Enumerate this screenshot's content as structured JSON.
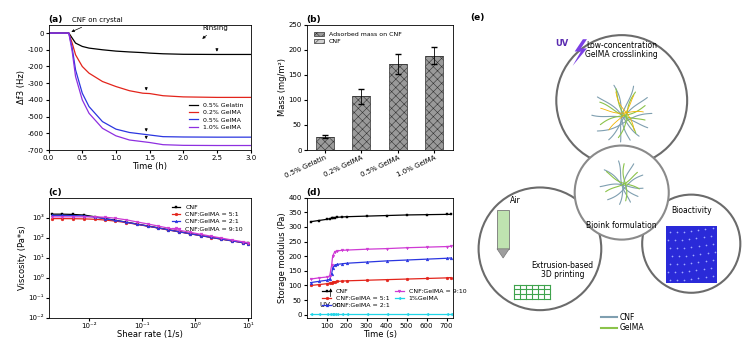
{
  "chart_data": [
    {
      "type": "line",
      "title": "(a)",
      "x_label": "Time (h)",
      "y_label": "Δf3 (Hz)",
      "x": [
        0,
        0.1,
        0.2,
        0.3,
        0.35,
        0.4,
        0.5,
        0.6,
        0.8,
        1.0,
        1.2,
        1.4,
        1.5,
        1.7,
        2.0,
        2.5,
        3.0
      ],
      "series": [
        {
          "name": "0.5% Gelatin",
          "color": "#000000",
          "marker": "none",
          "values": [
            0,
            0,
            0,
            0,
            -30,
            -60,
            -80,
            -90,
            -100,
            -108,
            -113,
            -117,
            -120,
            -124,
            -127,
            -128,
            -128
          ]
        },
        {
          "name": "0.2% GelMA",
          "color": "#e3241b",
          "marker": "none",
          "values": [
            0,
            0,
            0,
            0,
            -60,
            -130,
            -200,
            -240,
            -290,
            -320,
            -345,
            -360,
            -362,
            -375,
            -382,
            -385,
            -385
          ]
        },
        {
          "name": "0.5% GelMA",
          "color": "#2b36e0",
          "marker": "none",
          "values": [
            0,
            0,
            0,
            0,
            -90,
            -220,
            -360,
            -440,
            -530,
            -575,
            -595,
            -605,
            -610,
            -620,
            -622,
            -623,
            -623
          ]
        },
        {
          "name": "1.0% GelMA",
          "color": "#8e2fe0",
          "marker": "none",
          "values": [
            0,
            0,
            0,
            0,
            -110,
            -260,
            -400,
            -480,
            -570,
            -615,
            -640,
            -650,
            -655,
            -668,
            -672,
            -673,
            -673
          ]
        }
      ],
      "xlim": [
        0,
        3
      ],
      "xticks": [
        {
          "value": 0,
          "label": "0.0"
        },
        0.5,
        {
          "value": 1,
          "label": "1.0"
        },
        1.5,
        {
          "value": 2,
          "label": "2.0"
        },
        2.5,
        {
          "value": 3,
          "label": "3.0"
        }
      ],
      "ylim": [
        -700,
        50
      ],
      "yticks": [
        -700,
        -600,
        -500,
        -400,
        -300,
        -200,
        -100,
        0
      ],
      "legend": "center right",
      "annotations": [
        {
          "text": "CNF on crystal",
          "x": 0.3,
          "y": 0
        },
        {
          "text": "Rinsing",
          "x": 2.25,
          "y": -45
        }
      ],
      "rinsing_arrows": {
        "x": [
          2.5,
          1.45,
          1.45,
          1.45
        ],
        "y": [
          -128,
          -361,
          -607,
          -652
        ]
      }
    },
    {
      "type": "bar",
      "title": "(b)",
      "y_label": "Mass (mg/m²)",
      "categories": [
        "0.5% Gelatin",
        "0.2% GelMA",
        "0.5% GelMA",
        "1.0% GelMA"
      ],
      "series": [
        {
          "name": "Adsorbed mass on CNF",
          "color": "#9a9a9a",
          "values": [
            26,
            107,
            171,
            188
          ],
          "errors": [
            3,
            15,
            20,
            17
          ]
        },
        {
          "name": "CNF",
          "color": "#d0d0d0",
          "values": [
            0,
            0,
            0,
            0
          ]
        }
      ],
      "stacked": true,
      "ylim": [
        0,
        250
      ],
      "yticks": [
        0,
        50,
        100,
        150,
        200,
        250
      ],
      "legend": "upper left"
    },
    {
      "type": "line",
      "title": "(c)",
      "x_label": "Shear rate (1/s)",
      "y_label": "Viscosity (Pa*s)",
      "log": true,
      "x": [
        0.002,
        0.003,
        0.005,
        0.008,
        0.013,
        0.02,
        0.03,
        0.05,
        0.08,
        0.13,
        0.2,
        0.3,
        0.5,
        0.8,
        1.3,
        2,
        3,
        5,
        8,
        10
      ],
      "series": [
        {
          "name": "CNF",
          "color": "#000000",
          "marker": "square",
          "values": [
            1500,
            1500,
            1450,
            1350,
            1100,
            900,
            750,
            600,
            480,
            380,
            310,
            255,
            200,
            160,
            128,
            105,
            88,
            70,
            57,
            52
          ]
        },
        {
          "name": "CNF:GelMA = 5:1",
          "color": "#e3241b",
          "marker": "circle",
          "values": [
            900,
            900,
            890,
            870,
            830,
            760,
            680,
            570,
            460,
            370,
            300,
            245,
            195,
            155,
            125,
            102,
            85,
            68,
            56,
            50
          ]
        },
        {
          "name": "CNF:GelMA = 2:1",
          "color": "#2b36e0",
          "marker": "triangle_up",
          "values": [
            1300,
            1300,
            1280,
            1220,
            1050,
            880,
            740,
            590,
            470,
            375,
            305,
            250,
            195,
            157,
            125,
            103,
            86,
            69,
            56,
            51
          ]
        },
        {
          "name": "CNF:GelMA = 9:10",
          "color": "#cf3ad4",
          "marker": "triangle_down",
          "values": [
            1100,
            1100,
            1100,
            1100,
            1100,
            1050,
            950,
            780,
            610,
            480,
            380,
            305,
            235,
            185,
            145,
            118,
            97,
            76,
            62,
            56
          ]
        }
      ],
      "xlim": [
        0.0017,
        11
      ],
      "xticks": [
        {
          "value": 0.01,
          "label": "10⁻²"
        },
        {
          "value": 0.1,
          "label": "10⁻¹"
        },
        {
          "value": 1,
          "label": "10⁰"
        },
        {
          "value": 10,
          "label": "10¹"
        }
      ],
      "ylim": [
        0.01,
        10000
      ],
      "yticks": [
        {
          "value": 0.01,
          "label": "10⁻²"
        },
        {
          "value": 0.1,
          "label": "10⁻¹"
        },
        {
          "value": 1,
          "label": "10⁰"
        },
        {
          "value": 10,
          "label": "10¹"
        },
        {
          "value": 100,
          "label": "10²"
        },
        {
          "value": 1000,
          "label": "10³"
        }
      ],
      "legend": "upper right"
    },
    {
      "type": "line",
      "title": "(d)",
      "x_label": "Time (s)",
      "y_label": "Storage modulus (Pa)",
      "x": [
        20,
        60,
        100,
        115,
        125,
        130,
        140,
        150,
        175,
        200,
        300,
        400,
        500,
        600,
        700,
        720
      ],
      "series": [
        {
          "name": "CNF",
          "color": "#000000",
          "marker": "square",
          "values": [
            318,
            322,
            326,
            328,
            330,
            332,
            332,
            333,
            334,
            335,
            337,
            339,
            341,
            342,
            343,
            343
          ]
        },
        {
          "name": "CNF:GelMA = 5:1",
          "color": "#e3241b",
          "marker": "circle",
          "values": [
            100,
            103,
            106,
            108,
            110,
            112,
            113,
            114,
            115,
            116,
            118,
            120,
            122,
            124,
            126,
            127
          ]
        },
        {
          "name": "CNF:GelMA = 2:1",
          "color": "#2b36e0",
          "marker": "triangle_up",
          "values": [
            110,
            114,
            118,
            121,
            140,
            160,
            170,
            172,
            174,
            176,
            180,
            184,
            187,
            190,
            193,
            194
          ]
        },
        {
          "name": "CNF:GelMA = 9:10",
          "color": "#cf3ad4",
          "marker": "triangle_down",
          "values": [
            122,
            126,
            129,
            132,
            170,
            200,
            215,
            218,
            220,
            221,
            224,
            226,
            229,
            231,
            233,
            234
          ]
        },
        {
          "name": "1%GelMA",
          "color": "#1fd5e8",
          "marker": "triangle_left",
          "values": [
            2,
            2,
            2,
            2,
            2,
            2,
            2,
            2,
            2,
            2,
            2,
            2,
            2,
            2,
            2,
            2
          ]
        }
      ],
      "xlim": [
        0,
        730
      ],
      "xticks": [
        100,
        200,
        300,
        400,
        500,
        600,
        700
      ],
      "ylim": [
        -10,
        400
      ],
      "yticks": [
        0,
        50,
        100,
        150,
        200,
        250,
        300,
        350,
        400
      ],
      "legend": "lower center",
      "annotations": [
        {
          "text": "UV on",
          "x": 120,
          "y": 100
        }
      ]
    }
  ],
  "diagram": {
    "title": "(e)",
    "nodes": [
      {
        "label": [
          "Low-concentration",
          "GelMA crosslinking"
        ],
        "tag": "UV"
      },
      {
        "label": [
          "Bioink formulation"
        ]
      },
      {
        "label": [
          "Extrusion-based",
          "3D printing"
        ],
        "tag": "Air"
      },
      {
        "label": [
          "Bioactivity"
        ]
      }
    ],
    "legend": [
      "CNF",
      "GelMA"
    ]
  }
}
